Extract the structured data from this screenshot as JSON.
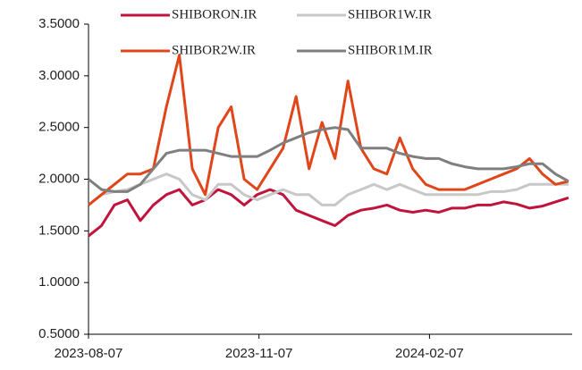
{
  "chart_data": {
    "type": "line",
    "x": [
      "2023-08-07",
      "2023-08-14",
      "2023-08-21",
      "2023-08-28",
      "2023-09-04",
      "2023-09-11",
      "2023-09-18",
      "2023-09-25",
      "2023-10-02",
      "2023-10-09",
      "2023-10-16",
      "2023-10-23",
      "2023-10-30",
      "2023-11-06",
      "2023-11-13",
      "2023-11-20",
      "2023-11-27",
      "2023-12-04",
      "2023-12-11",
      "2023-12-18",
      "2023-12-25",
      "2024-01-01",
      "2024-01-08",
      "2024-01-15",
      "2024-01-22",
      "2024-01-29",
      "2024-02-05",
      "2024-02-12",
      "2024-02-19",
      "2024-02-26",
      "2024-03-04",
      "2024-03-11",
      "2024-03-18",
      "2024-03-25",
      "2024-04-01",
      "2024-04-08",
      "2024-04-15",
      "2024-04-22"
    ],
    "series": [
      {
        "name": "SHIBORON.IR",
        "color": "#c0143c",
        "values": [
          1.45,
          1.55,
          1.75,
          1.8,
          1.6,
          1.75,
          1.85,
          1.9,
          1.75,
          1.8,
          1.9,
          1.85,
          1.75,
          1.85,
          1.9,
          1.85,
          1.7,
          1.65,
          1.6,
          1.55,
          1.65,
          1.7,
          1.72,
          1.75,
          1.7,
          1.68,
          1.7,
          1.68,
          1.72,
          1.72,
          1.75,
          1.75,
          1.78,
          1.76,
          1.72,
          1.74,
          1.78,
          1.82
        ]
      },
      {
        "name": "SHIBOR1W.IR",
        "color": "#c8c8c8",
        "values": [
          1.75,
          1.85,
          1.88,
          1.9,
          1.95,
          2.0,
          2.05,
          2.0,
          1.85,
          1.8,
          1.95,
          1.95,
          1.85,
          1.8,
          1.85,
          1.9,
          1.85,
          1.85,
          1.75,
          1.75,
          1.85,
          1.9,
          1.95,
          1.9,
          1.95,
          1.9,
          1.85,
          1.85,
          1.85,
          1.85,
          1.85,
          1.88,
          1.88,
          1.9,
          1.95,
          1.95,
          1.95,
          1.95
        ]
      },
      {
        "name": "SHIBOR2W.IR",
        "color": "#e0461a",
        "values": [
          1.75,
          1.85,
          1.95,
          2.05,
          2.05,
          2.1,
          2.7,
          3.2,
          2.1,
          1.85,
          2.5,
          2.7,
          2.0,
          1.9,
          2.1,
          2.3,
          2.8,
          2.1,
          2.55,
          2.2,
          2.95,
          2.3,
          2.1,
          2.05,
          2.4,
          2.1,
          1.95,
          1.9,
          1.9,
          1.9,
          1.95,
          2.0,
          2.05,
          2.1,
          2.2,
          2.05,
          1.95,
          1.98
        ]
      },
      {
        "name": "SHIBOR1M.IR",
        "color": "#7f7f7f",
        "values": [
          2.0,
          1.9,
          1.88,
          1.88,
          1.95,
          2.1,
          2.25,
          2.28,
          2.28,
          2.28,
          2.25,
          2.22,
          2.22,
          2.22,
          2.28,
          2.35,
          2.4,
          2.45,
          2.48,
          2.5,
          2.48,
          2.3,
          2.3,
          2.3,
          2.25,
          2.22,
          2.2,
          2.2,
          2.15,
          2.12,
          2.1,
          2.1,
          2.1,
          2.12,
          2.15,
          2.15,
          2.05,
          1.98
        ]
      }
    ],
    "xlim": [
      "2023-08-07",
      "2024-04-24"
    ],
    "xticks": [
      "2023-08-07",
      "2023-11-07",
      "2024-02-07"
    ],
    "ylim": [
      0.5,
      3.5
    ],
    "yticks": [
      {
        "value": 0.5,
        "label": "0.5000"
      },
      {
        "value": 1,
        "label": "1.0000"
      },
      {
        "value": 1.5,
        "label": "1.5000"
      },
      {
        "value": 2,
        "label": "2.0000"
      },
      {
        "value": 2.5,
        "label": "2.5000"
      },
      {
        "value": 3,
        "label": "3.0000"
      },
      {
        "value": 3.5,
        "label": "3.5000"
      }
    ],
    "grid": false,
    "legend": "top"
  }
}
